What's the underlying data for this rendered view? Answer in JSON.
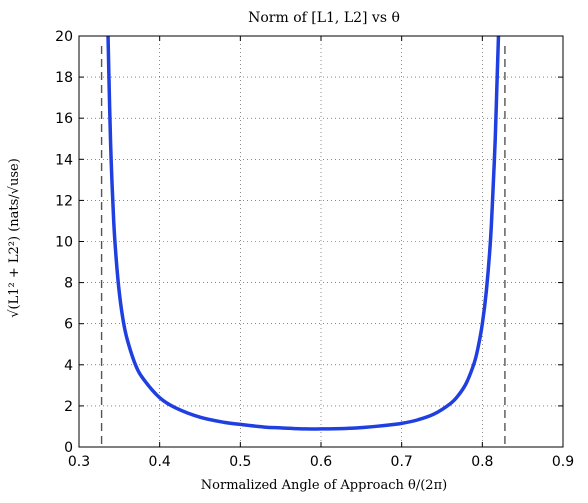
{
  "chart_data": {
    "type": "line",
    "title": "Norm of [L1, L2] vs θ",
    "xlabel": "Normalized Angle of Approach θ/(2π)",
    "ylabel": "√(L1² + L2²)  (nats/√use)",
    "xlim": [
      0.3,
      0.9
    ],
    "ylim": [
      0,
      20
    ],
    "xticks": [
      0.3,
      0.4,
      0.5,
      0.6,
      0.7,
      0.8,
      0.9
    ],
    "yticks": [
      0,
      2,
      4,
      6,
      8,
      10,
      12,
      14,
      16,
      18,
      20
    ],
    "xtick_labels": [
      "0.3",
      "0.4",
      "0.5",
      "0.6",
      "0.7",
      "0.8",
      "0.9"
    ],
    "ytick_labels": [
      "0",
      "2",
      "4",
      "6",
      "8",
      "10",
      "12",
      "14",
      "16",
      "18",
      "20"
    ],
    "grid": true,
    "asymptotes_x": [
      0.328,
      0.828
    ],
    "series": [
      {
        "color": "#1f3fe0",
        "x": [
          0.336,
          0.338,
          0.34,
          0.343,
          0.346,
          0.35,
          0.355,
          0.36,
          0.37,
          0.38,
          0.4,
          0.42,
          0.45,
          0.48,
          0.5,
          0.53,
          0.55,
          0.58,
          0.6,
          0.63,
          0.65,
          0.68,
          0.7,
          0.72,
          0.74,
          0.76,
          0.77,
          0.78,
          0.79,
          0.795,
          0.8,
          0.805,
          0.81,
          0.813,
          0.816,
          0.818,
          0.82
        ],
        "y": [
          20,
          16.5,
          13.8,
          11.0,
          9.2,
          7.5,
          6.1,
          5.2,
          4.0,
          3.3,
          2.4,
          1.9,
          1.45,
          1.2,
          1.1,
          0.97,
          0.93,
          0.88,
          0.88,
          0.9,
          0.94,
          1.05,
          1.15,
          1.32,
          1.6,
          2.1,
          2.5,
          3.1,
          4.1,
          4.9,
          6.0,
          7.6,
          10.0,
          12.3,
          15.0,
          17.5,
          20
        ]
      }
    ]
  }
}
